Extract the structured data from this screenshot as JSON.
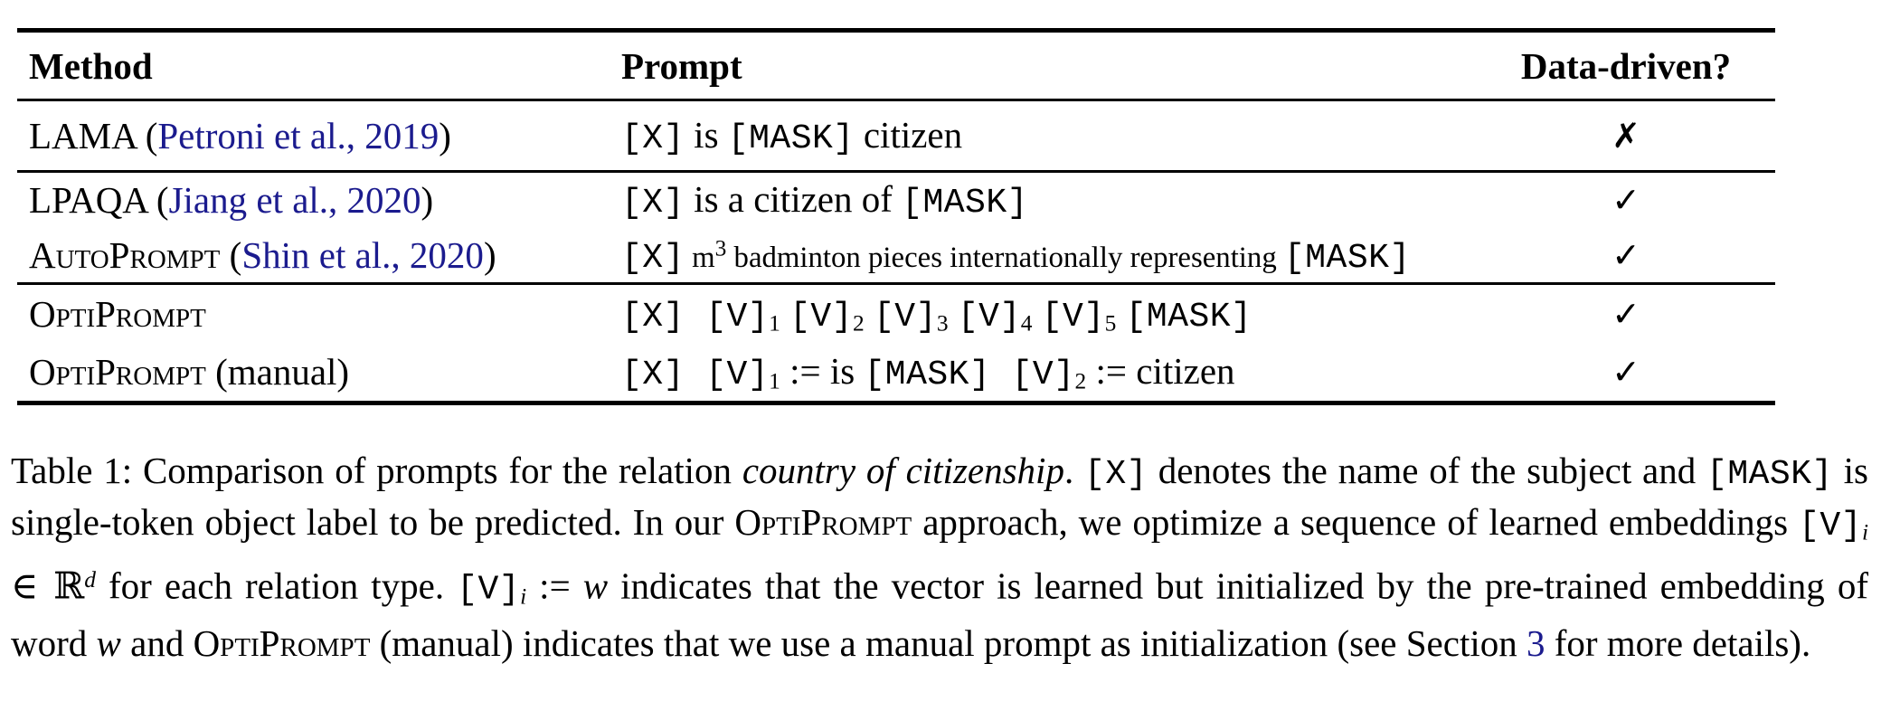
{
  "colors": {
    "link": "#1b1b8e",
    "text": "#000000",
    "rule": "#000000"
  },
  "table": {
    "headers": [
      "Method",
      "Prompt",
      "Data-driven?"
    ],
    "rows": [
      {
        "method": [
          {
            "t": "LAMA (",
            "s": "rm"
          },
          {
            "t": "Petroni et al., 2019",
            "s": "link",
            "n": "citation-link-petroni-2019"
          },
          {
            "t": ")",
            "s": "rm"
          }
        ],
        "prompt": [
          {
            "t": "[X]",
            "s": "tt"
          },
          {
            "t": " is ",
            "s": "rm"
          },
          {
            "t": "[MASK]",
            "s": "tt"
          },
          {
            "t": " citizen",
            "s": "rm"
          }
        ],
        "data_driven": "✗",
        "mark_name": "cross-mark-icon"
      },
      {
        "method": [
          {
            "t": "LPAQA (",
            "s": "rm"
          },
          {
            "t": "Jiang et al., 2020",
            "s": "link",
            "n": "citation-link-jiang-2020"
          },
          {
            "t": ")",
            "s": "rm"
          }
        ],
        "prompt": [
          {
            "t": "[X]",
            "s": "tt"
          },
          {
            "t": " is a citizen of ",
            "s": "rm"
          },
          {
            "t": "[MASK]",
            "s": "tt"
          }
        ],
        "data_driven": "✓",
        "mark_name": "check-mark-icon"
      },
      {
        "method": [
          {
            "t": "AutoPrompt",
            "s": "sc"
          },
          {
            "t": " (",
            "s": "rm"
          },
          {
            "t": "Shin et al., 2020",
            "s": "link",
            "n": "citation-link-shin-2020"
          },
          {
            "t": ")",
            "s": "rm"
          }
        ],
        "prompt": [
          {
            "t": "[X]",
            "s": "tt"
          },
          {
            "t": " m",
            "s": "rm small"
          },
          {
            "t": "3",
            "s": "sup"
          },
          {
            "t": " badminton pieces internationally representing ",
            "s": "rm small"
          },
          {
            "t": "[MASK]",
            "s": "tt"
          }
        ],
        "data_driven": "✓",
        "mark_name": "check-mark-icon"
      },
      {
        "method": [
          {
            "t": "OptiPrompt",
            "s": "sc"
          }
        ],
        "prompt": [
          {
            "t": "[X] ",
            "s": "tt"
          },
          {
            "t": "[V]",
            "s": "tt"
          },
          {
            "t": "1",
            "s": "sub"
          },
          {
            "t": " ",
            "s": "rm"
          },
          {
            "t": "[V]",
            "s": "tt"
          },
          {
            "t": "2",
            "s": "sub"
          },
          {
            "t": " ",
            "s": "rm"
          },
          {
            "t": "[V]",
            "s": "tt"
          },
          {
            "t": "3",
            "s": "sub"
          },
          {
            "t": " ",
            "s": "rm"
          },
          {
            "t": "[V]",
            "s": "tt"
          },
          {
            "t": "4",
            "s": "sub"
          },
          {
            "t": " ",
            "s": "rm"
          },
          {
            "t": "[V]",
            "s": "tt"
          },
          {
            "t": "5",
            "s": "sub"
          },
          {
            "t": " ",
            "s": "rm"
          },
          {
            "t": "[MASK]",
            "s": "tt"
          }
        ],
        "data_driven": "✓",
        "mark_name": "check-mark-icon"
      },
      {
        "method": [
          {
            "t": "OptiPrompt",
            "s": "sc"
          },
          {
            "t": " (manual)",
            "s": "rm"
          }
        ],
        "prompt": [
          {
            "t": "[X] ",
            "s": "tt"
          },
          {
            "t": "[V]",
            "s": "tt"
          },
          {
            "t": "1",
            "s": "sub"
          },
          {
            "t": " := is ",
            "s": "rm"
          },
          {
            "t": "[MASK] ",
            "s": "tt"
          },
          {
            "t": "[V]",
            "s": "tt"
          },
          {
            "t": "2",
            "s": "sub"
          },
          {
            "t": " := citizen",
            "s": "rm"
          }
        ],
        "data_driven": "✓",
        "mark_name": "check-mark-icon"
      }
    ]
  },
  "caption": {
    "segments": [
      {
        "t": "Table 1: Comparison of prompts for the relation ",
        "s": "rm"
      },
      {
        "t": "country of citizenship",
        "s": "it"
      },
      {
        "t": ". ",
        "s": "rm"
      },
      {
        "t": "[X]",
        "s": "tt"
      },
      {
        "t": " denotes the name of the subject and ",
        "s": "rm"
      },
      {
        "t": "[MASK]",
        "s": "tt"
      },
      {
        "t": " is single-token object label to be predicted. In our ",
        "s": "rm"
      },
      {
        "t": "OptiPrompt",
        "s": "sc"
      },
      {
        "t": " approach, we optimize a sequence of learned embeddings ",
        "s": "rm"
      },
      {
        "t": "[V]",
        "s": "tt"
      },
      {
        "t": "i",
        "s": "sub it"
      },
      {
        "t": " ∈ ℝ",
        "s": "bb"
      },
      {
        "t": "d",
        "s": "sup it"
      },
      {
        "t": " for each relation type. ",
        "s": "rm"
      },
      {
        "t": "[V]",
        "s": "tt"
      },
      {
        "t": "i",
        "s": "sub it"
      },
      {
        "t": " := ",
        "s": "rm"
      },
      {
        "t": "w",
        "s": "it"
      },
      {
        "t": " indicates that the vector is learned but initialized by the pre-trained embedding of word ",
        "s": "rm"
      },
      {
        "t": "w",
        "s": "it"
      },
      {
        "t": " and ",
        "s": "rm"
      },
      {
        "t": "OptiPrompt",
        "s": "sc"
      },
      {
        "t": " (manual) indicates that we use a manual prompt as initialization (see Section ",
        "s": "rm"
      },
      {
        "t": "3",
        "s": "link",
        "n": "section-3-link"
      },
      {
        "t": " for more details).",
        "s": "rm"
      }
    ]
  }
}
